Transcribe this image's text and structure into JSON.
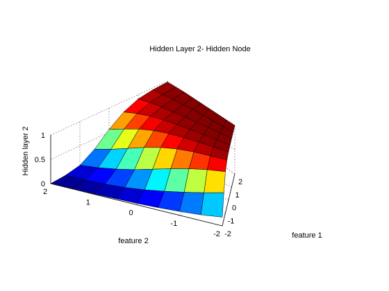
{
  "chart_data": {
    "type": "surface",
    "title": "Hidden Layer 2- Hidden Node",
    "xlabel": "feature 1",
    "ylabel": "feature 2",
    "zlabel": "Hidden layer 2",
    "xlim": [
      -2,
      2
    ],
    "ylim": [
      -2,
      2
    ],
    "zlim": [
      0,
      1
    ],
    "xticks": [
      "-2",
      "-1",
      "0",
      "1",
      "2"
    ],
    "yticks": [
      "-2",
      "-1",
      "0",
      "1",
      "2"
    ],
    "zticks": [
      "0",
      "0.5",
      "1"
    ],
    "grid": true,
    "colormap": "jet",
    "x": [
      -2,
      -1.5,
      -1,
      -0.5,
      0,
      0.5,
      1,
      1.5,
      2
    ],
    "y": [
      -2,
      -1.5,
      -1,
      -0.5,
      0,
      0.5,
      1,
      1.5,
      2
    ],
    "z": [
      [
        0.18,
        0.55,
        0.85,
        0.96,
        0.99,
        1.0,
        1.0,
        1.0,
        1.0
      ],
      [
        0.12,
        0.44,
        0.78,
        0.93,
        0.98,
        0.99,
        1.0,
        1.0,
        1.0
      ],
      [
        0.08,
        0.34,
        0.69,
        0.9,
        0.97,
        0.99,
        1.0,
        1.0,
        1.0
      ],
      [
        0.05,
        0.25,
        0.58,
        0.85,
        0.95,
        0.98,
        0.99,
        1.0,
        1.0
      ],
      [
        0.03,
        0.17,
        0.46,
        0.77,
        0.92,
        0.97,
        0.99,
        1.0,
        1.0
      ],
      [
        0.02,
        0.11,
        0.34,
        0.66,
        0.87,
        0.95,
        0.98,
        0.99,
        1.0
      ],
      [
        0.01,
        0.07,
        0.24,
        0.53,
        0.79,
        0.92,
        0.97,
        0.99,
        1.0
      ],
      [
        0.01,
        0.04,
        0.16,
        0.4,
        0.68,
        0.86,
        0.95,
        0.98,
        0.99
      ],
      [
        0.0,
        0.03,
        0.1,
        0.29,
        0.56,
        0.78,
        0.91,
        0.96,
        0.98
      ]
    ]
  }
}
